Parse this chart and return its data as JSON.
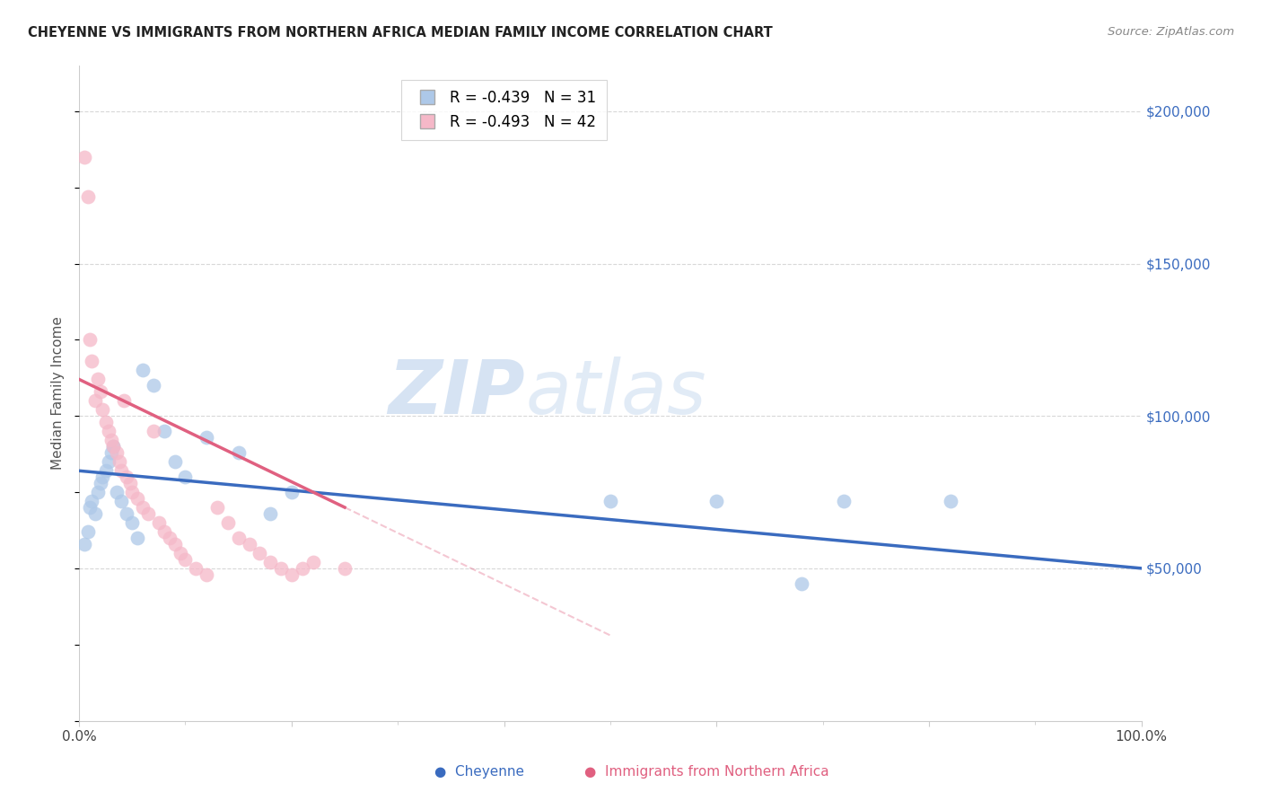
{
  "title": "CHEYENNE VS IMMIGRANTS FROM NORTHERN AFRICA MEDIAN FAMILY INCOME CORRELATION CHART",
  "source": "Source: ZipAtlas.com",
  "ylabel": "Median Family Income",
  "xlim": [
    0,
    1.0
  ],
  "ylim": [
    0,
    215000
  ],
  "background_color": "#ffffff",
  "grid_color": "#d8d8d8",
  "series1_name": "Cheyenne",
  "series1_color": "#adc8e8",
  "series1_line_color": "#3a6bbf",
  "series1_R": -0.439,
  "series1_N": 31,
  "series2_name": "Immigrants from Northern Africa",
  "series2_color": "#f5b8c8",
  "series2_line_color": "#e06080",
  "series2_R": -0.493,
  "series2_N": 42,
  "cheyenne_x": [
    0.005,
    0.008,
    0.01,
    0.012,
    0.015,
    0.018,
    0.02,
    0.022,
    0.025,
    0.028,
    0.03,
    0.032,
    0.035,
    0.04,
    0.045,
    0.05,
    0.055,
    0.06,
    0.07,
    0.08,
    0.09,
    0.1,
    0.12,
    0.15,
    0.18,
    0.2,
    0.5,
    0.6,
    0.68,
    0.72,
    0.82
  ],
  "cheyenne_y": [
    58000,
    62000,
    70000,
    72000,
    68000,
    75000,
    78000,
    80000,
    82000,
    85000,
    88000,
    90000,
    75000,
    72000,
    68000,
    65000,
    60000,
    115000,
    110000,
    95000,
    85000,
    80000,
    93000,
    88000,
    68000,
    75000,
    72000,
    72000,
    45000,
    72000,
    72000
  ],
  "africa_x": [
    0.005,
    0.008,
    0.01,
    0.012,
    0.015,
    0.018,
    0.02,
    0.022,
    0.025,
    0.028,
    0.03,
    0.032,
    0.035,
    0.038,
    0.04,
    0.042,
    0.045,
    0.048,
    0.05,
    0.055,
    0.06,
    0.065,
    0.07,
    0.075,
    0.08,
    0.085,
    0.09,
    0.095,
    0.1,
    0.11,
    0.12,
    0.13,
    0.14,
    0.15,
    0.16,
    0.17,
    0.18,
    0.19,
    0.2,
    0.21,
    0.22,
    0.25
  ],
  "africa_y": [
    185000,
    172000,
    125000,
    118000,
    105000,
    112000,
    108000,
    102000,
    98000,
    95000,
    92000,
    90000,
    88000,
    85000,
    82000,
    105000,
    80000,
    78000,
    75000,
    73000,
    70000,
    68000,
    95000,
    65000,
    62000,
    60000,
    58000,
    55000,
    53000,
    50000,
    48000,
    70000,
    65000,
    60000,
    58000,
    55000,
    52000,
    50000,
    48000,
    50000,
    52000,
    50000
  ],
  "watermark_zip": "ZIP",
  "watermark_atlas": "atlas",
  "marker_size": 130,
  "trend1_x0": 0.0,
  "trend1_y0": 82000,
  "trend1_x1": 1.0,
  "trend1_y1": 50000,
  "trend2_solid_x0": 0.0,
  "trend2_solid_y0": 112000,
  "trend2_solid_x1": 0.25,
  "trend2_solid_y1": 70000,
  "trend2_dash_x0": 0.25,
  "trend2_dash_y0": 70000,
  "trend2_dash_x1": 0.5,
  "trend2_dash_y1": 28000
}
